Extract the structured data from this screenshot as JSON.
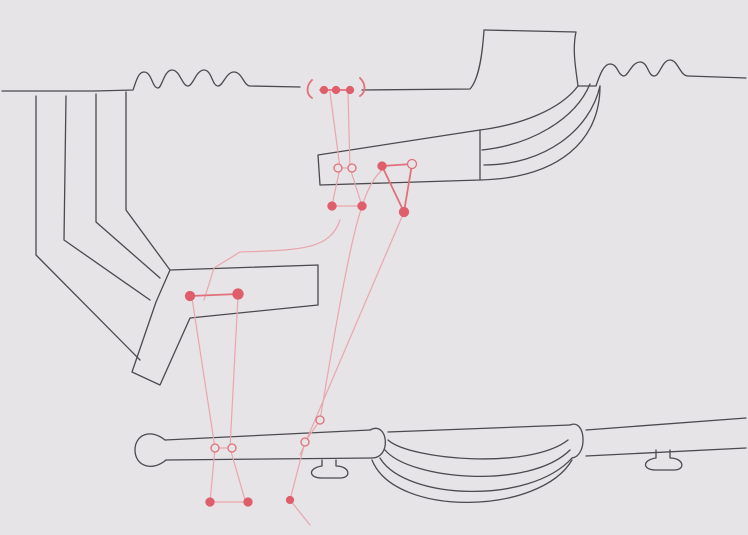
{
  "colors": {
    "paper": "#e6e4e7",
    "paper_edge": "#cfcdd1",
    "pencil": "#4a4a4f",
    "pencil_light": "#8d8a90",
    "red_ink": "#e0707a",
    "red_fill": "#de5e6b",
    "red_faint": "#e9a6ad"
  }
}
